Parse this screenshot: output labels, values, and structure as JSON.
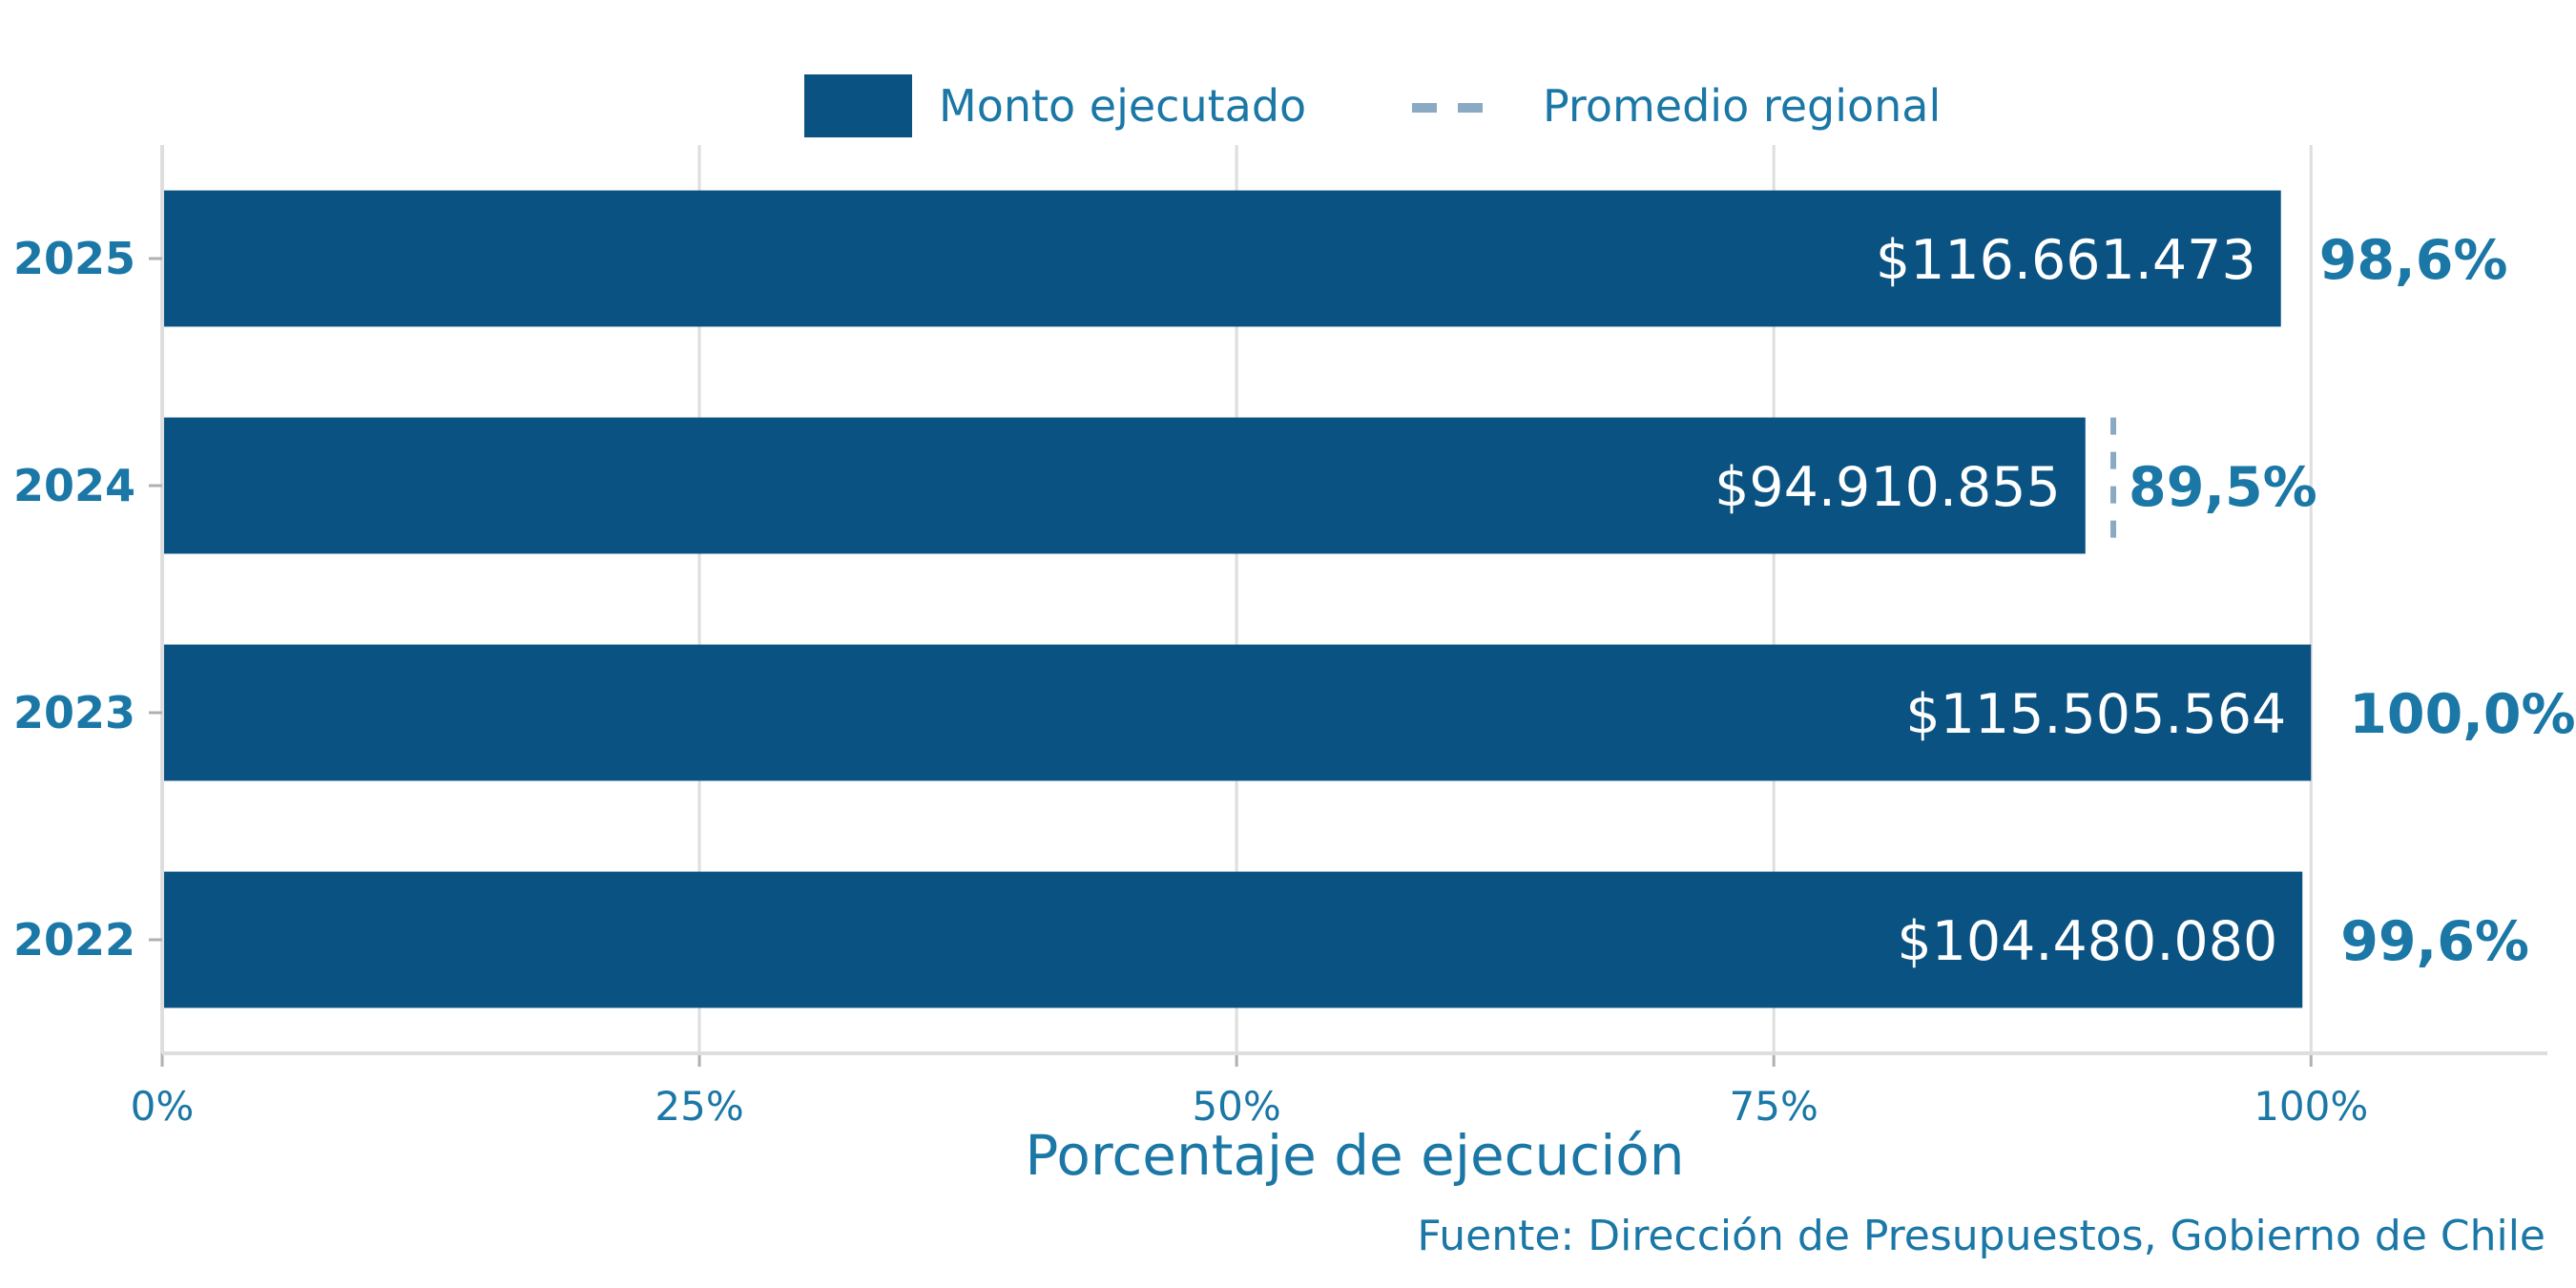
{
  "chart_data": {
    "type": "bar",
    "orientation": "horizontal",
    "categories": [
      "2025",
      "2024",
      "2023",
      "2022"
    ],
    "values": [
      98.6,
      89.5,
      100.0,
      99.6
    ],
    "value_labels": [
      "98,6%",
      "89,5%",
      "100,0%",
      "99,6%"
    ],
    "amount_labels": [
      "$116.661.473",
      "$94.910.855",
      "$115.505.564",
      "$104.480.080"
    ],
    "reference_line": {
      "name": "Promedio regional",
      "category": "2024",
      "value": 90.8
    },
    "legend": {
      "items": [
        "Monto ejecutado",
        "Promedio regional"
      ],
      "position": "top"
    },
    "xlabel": "Porcentaje de ejecución",
    "xlim": [
      0,
      111
    ],
    "xticks": [
      0,
      25,
      50,
      75,
      100
    ],
    "xtick_labels": [
      "0%",
      "25%",
      "50%",
      "75%",
      "100%"
    ],
    "grid": true,
    "source": "Fuente: Dirección de Presupuestos, Gobierno de Chile",
    "colors": {
      "bar": "#0a5282",
      "reference": "#8aa9c2",
      "text": "#1a77a6"
    }
  }
}
